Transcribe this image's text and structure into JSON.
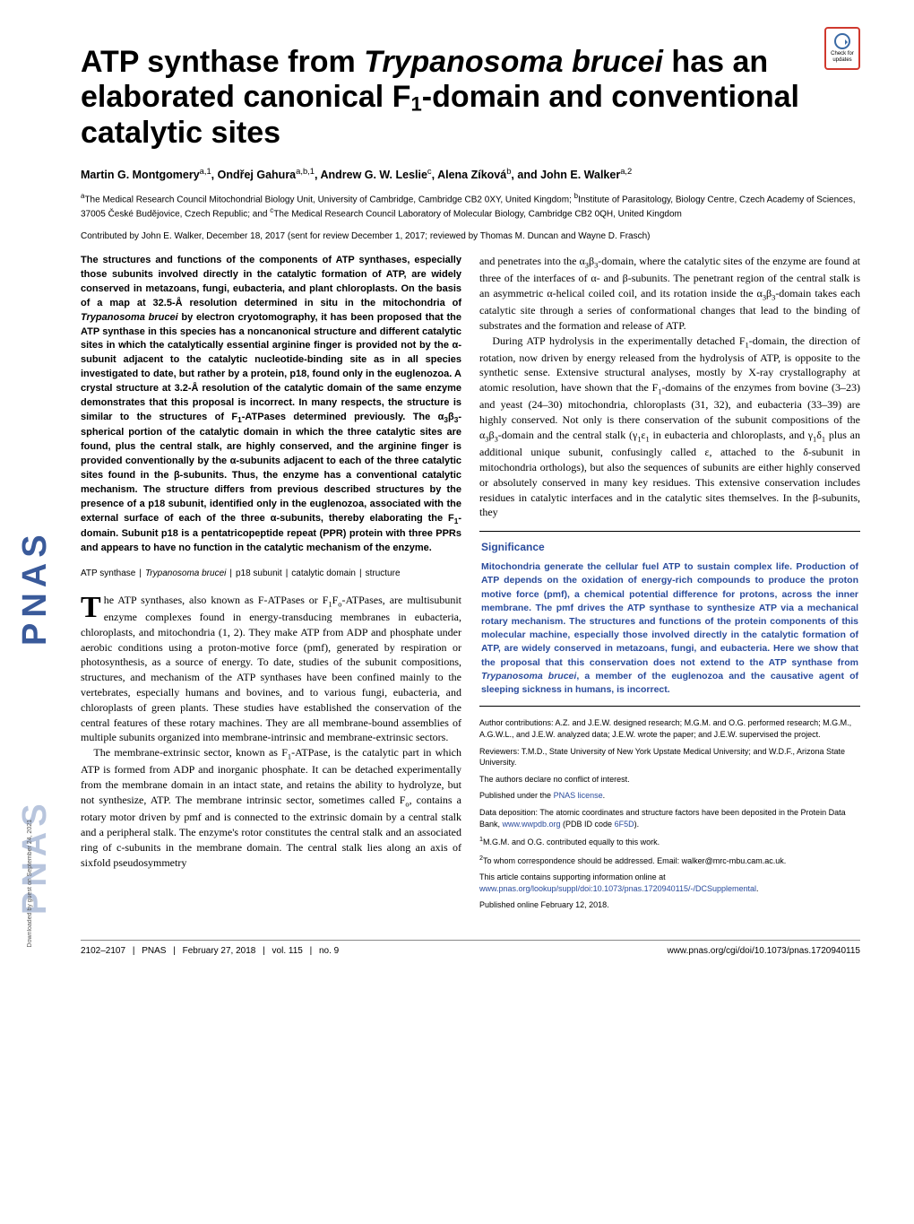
{
  "journal_logo": "PNAS",
  "update_badge": "Check for updates",
  "title_prefix": "ATP synthase from ",
  "title_species": "Trypanosoma brucei",
  "title_suffix1": " has an elaborated canonical F",
  "title_sub": "1",
  "title_suffix2": "-domain and conventional catalytic sites",
  "authors_html": "Martin G. Montgomery<sup>a,1</sup>, Ondřej Gahura<sup>a,b,1</sup>, Andrew G. W. Leslie<sup>c</sup>, Alena Zíková<sup>b</sup>, and John E. Walker<sup>a,2</sup>",
  "affiliations_html": "<sup>a</sup>The Medical Research Council Mitochondrial Biology Unit, University of Cambridge, Cambridge CB2 0XY, United Kingdom; <sup>b</sup>Institute of Parasitology, Biology Centre, Czech Academy of Sciences, 37005 České Budějovice, Czech Republic; and <sup>c</sup>The Medical Research Council Laboratory of Molecular Biology, Cambridge CB2 0QH, United Kingdom",
  "contributed": "Contributed by John E. Walker, December 18, 2017 (sent for review December 1, 2017; reviewed by Thomas M. Duncan and Wayne D. Frasch)",
  "abstract_html": "The structures and functions of the components of ATP synthases, especially those subunits involved directly in the catalytic formation of ATP, are widely conserved in metazoans, fungi, eubacteria, and plant chloroplasts. On the basis of a map at 32.5-Å resolution determined in situ in the mitochondria of <i>Trypanosoma brucei</i> by electron cryotomography, it has been proposed that the ATP synthase in this species has a noncanonical structure and different catalytic sites in which the catalytically essential arginine finger is provided not by the α-subunit adjacent to the catalytic nucleotide-binding site as in all species investigated to date, but rather by a protein, p18, found only in the euglenozoa. A crystal structure at 3.2-Å resolution of the catalytic domain of the same enzyme demonstrates that this proposal is incorrect. In many respects, the structure is similar to the structures of F<sub>1</sub>-ATPases determined previously. The α<sub>3</sub>β<sub>3</sub>-spherical portion of the catalytic domain in which the three catalytic sites are found, plus the central stalk, are highly conserved, and the arginine finger is provided conventionally by the α-subunits adjacent to each of the three catalytic sites found in the β-subunits. Thus, the enzyme has a conventional catalytic mechanism. The structure differs from previous described structures by the presence of a p18 subunit, identified only in the euglenozoa, associated with the external surface of each of the three α-subunits, thereby elaborating the F<sub>1</sub>-domain. Subunit p18 is a pentatricopeptide repeat (PPR) protein with three PPRs and appears to have no function in the catalytic mechanism of the enzyme.",
  "keywords": [
    "ATP synthase",
    "Trypanosoma brucei",
    "p18 subunit",
    "catalytic domain",
    "structure"
  ],
  "body_p1_html": "The ATP synthases, also known as F-ATPases or F<sub>1</sub>F<sub>o</sub>-ATPases, are multisubunit enzyme complexes found in energy-transducing membranes in eubacteria, chloroplasts, and mitochondria (1, 2). They make ATP from ADP and phosphate under aerobic conditions using a proton-motive force (pmf), generated by respiration or photosynthesis, as a source of energy. To date, studies of the subunit compositions, structures, and mechanism of the ATP synthases have been confined mainly to the vertebrates, especially humans and bovines, and to various fungi, eubacteria, and chloroplasts of green plants. These studies have established the conservation of the central features of these rotary machines. They are all membrane-bound assemblies of multiple subunits organized into membrane-intrinsic and membrane-extrinsic sectors.",
  "body_p2_html": "The membrane-extrinsic sector, known as F<sub>1</sub>-ATPase, is the catalytic part in which ATP is formed from ADP and inorganic phosphate. It can be detached experimentally from the membrane domain in an intact state, and retains the ability to hydrolyze, but not synthesize, ATP. The membrane intrinsic sector, sometimes called F<sub>o</sub>, contains a rotary motor driven by pmf and is connected to the extrinsic domain by a central stalk and a peripheral stalk. The enzyme's rotor constitutes the central stalk and an associated ring of c-subunits in the membrane domain. The central stalk lies along an axis of sixfold pseudosymmetry",
  "col2_p1_html": "and penetrates into the α<sub>3</sub>β<sub>3</sub>-domain, where the catalytic sites of the enzyme are found at three of the interfaces of α- and β-subunits. The penetrant region of the central stalk is an asymmetric α-helical coiled coil, and its rotation inside the α<sub>3</sub>β<sub>3</sub>-domain takes each catalytic site through a series of conformational changes that lead to the binding of substrates and the formation and release of ATP.",
  "col2_p2_html": "During ATP hydrolysis in the experimentally detached F<sub>1</sub>-domain, the direction of rotation, now driven by energy released from the hydrolysis of ATP, is opposite to the synthetic sense. Extensive structural analyses, mostly by X-ray crystallography at atomic resolution, have shown that the F<sub>1</sub>-domains of the enzymes from bovine (3–23) and yeast (24–30) mitochondria, chloroplasts (31, 32), and eubacteria (33–39) are highly conserved. Not only is there conservation of the subunit compositions of the α<sub>3</sub>β<sub>3</sub>-domain and the central stalk (γ<sub>1</sub>ε<sub>1</sub> in eubacteria and chloroplasts, and γ<sub>1</sub>δ<sub>1</sub> plus an additional unique subunit, confusingly called ε, attached to the δ-subunit in mitochondria orthologs), but also the sequences of subunits are either highly conserved or absolutely conserved in many key residues. This extensive conservation includes residues in catalytic interfaces and in the catalytic sites themselves. In the β-subunits, they",
  "significance_title": "Significance",
  "significance_html": "Mitochondria generate the cellular fuel ATP to sustain complex life. Production of ATP depends on the oxidation of energy-rich compounds to produce the proton motive force (pmf), a chemical potential difference for protons, across the inner membrane. The pmf drives the ATP synthase to synthesize ATP via a mechanical rotary mechanism. The structures and functions of the protein components of this molecular machine, especially those involved directly in the catalytic formation of ATP, are widely conserved in metazoans, fungi, and eubacteria. Here we show that the proposal that this conservation does not extend to the ATP synthase from <span class=\"italic\">Trypanosoma brucei</span>, a member of the euglenozoa and the causative agent of sleeping sickness in humans, is incorrect.",
  "footnotes": {
    "author_contrib": "Author contributions: A.Z. and J.E.W. designed research; M.G.M. and O.G. performed research; M.G.M., A.G.W.L., and J.E.W. analyzed data; J.E.W. wrote the paper; and J.E.W. supervised the project.",
    "reviewers": "Reviewers: T.M.D., State University of New York Upstate Medical University; and W.D.F., Arizona State University.",
    "conflict": "The authors declare no conflict of interest.",
    "license_prefix": "Published under the ",
    "license_link": "PNAS license",
    "data_dep_prefix": "Data deposition: The atomic coordinates and structure factors have been deposited in the Protein Data Bank, ",
    "data_dep_link1": "www.wwpdb.org",
    "data_dep_mid": " (PDB ID code ",
    "data_dep_link2": "6F5D",
    "data_dep_suffix": ").",
    "equal": "M.G.M. and O.G. contributed equally to this work.",
    "correspond": "To whom correspondence should be addressed. Email: walker@mrc-mbu.cam.ac.uk.",
    "suppl_prefix": "This article contains supporting information online at ",
    "suppl_link": "www.pnas.org/lookup/suppl/doi:10.1073/pnas.1720940115/-/DCSupplemental",
    "published": "Published online February 12, 2018."
  },
  "footer": {
    "pages": "2102–2107",
    "journal": "PNAS",
    "date": "February 27, 2018",
    "vol": "vol. 115",
    "no": "no. 9",
    "url": "www.pnas.org/cgi/doi/10.1073/pnas.1720940115"
  },
  "download_note": "Downloaded by guest on September 24, 2021"
}
